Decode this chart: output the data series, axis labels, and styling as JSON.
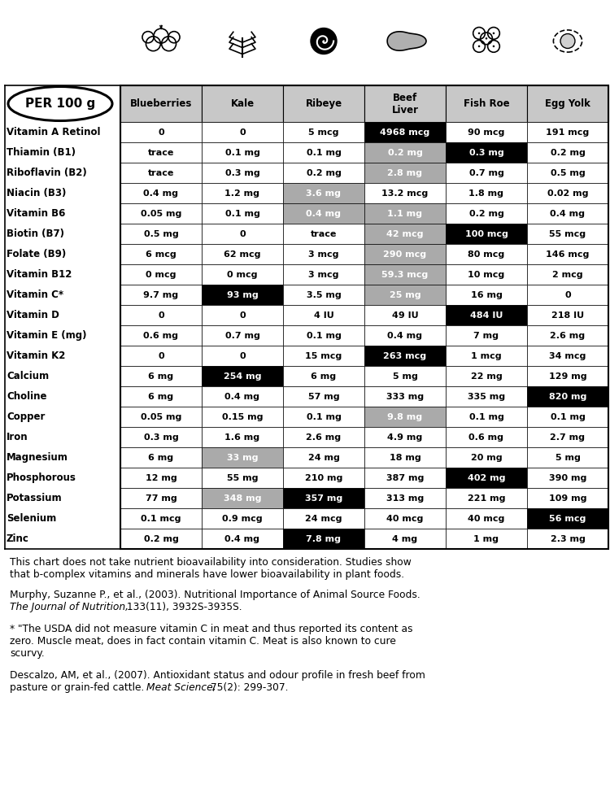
{
  "nutrients": [
    "Vitamin A Retinol",
    "Thiamin (B1)",
    "Riboflavin (B2)",
    "Niacin (B3)",
    "Vitamin B6",
    "Biotin (B7)",
    "Folate (B9)",
    "Vitamin B12",
    "Vitamin C*",
    "Vitamin D",
    "Vitamin E (mg)",
    "Vitamin K2",
    "Calcium",
    "Choline",
    "Copper",
    "Iron",
    "Magnesium",
    "Phosphorous",
    "Potassium",
    "Selenium",
    "Zinc"
  ],
  "columns": [
    "Blueberries",
    "Kale",
    "Ribeye",
    "Beef\nLiver",
    "Fish Roe",
    "Egg Yolk"
  ],
  "values": [
    [
      "0",
      "0",
      "5 mcg",
      "4968 mcg",
      "90 mcg",
      "191 mcg"
    ],
    [
      "trace",
      "0.1 mg",
      "0.1 mg",
      "0.2 mg",
      "0.3 mg",
      "0.2 mg"
    ],
    [
      "trace",
      "0.3 mg",
      "0.2 mg",
      "2.8 mg",
      "0.7 mg",
      "0.5 mg"
    ],
    [
      "0.4 mg",
      "1.2 mg",
      "3.6 mg",
      "13.2 mcg",
      "1.8 mg",
      "0.02 mg"
    ],
    [
      "0.05 mg",
      "0.1 mg",
      "0.4 mg",
      "1.1 mg",
      "0.2 mg",
      "0.4 mg"
    ],
    [
      "0.5 mg",
      "0",
      "trace",
      "42 mcg",
      "100 mcg",
      "55 mcg"
    ],
    [
      "6 mcg",
      "62 mcg",
      "3 mcg",
      "290 mcg",
      "80 mcg",
      "146 mcg"
    ],
    [
      "0 mcg",
      "0 mcg",
      "3 mcg",
      "59.3 mcg",
      "10 mcg",
      "2 mcg"
    ],
    [
      "9.7 mg",
      "93 mg",
      "3.5 mg",
      "25 mg",
      "16 mg",
      "0"
    ],
    [
      "0",
      "0",
      "4 IU",
      "49 IU",
      "484 IU",
      "218 IU"
    ],
    [
      "0.6 mg",
      "0.7 mg",
      "0.1 mg",
      "0.4 mg",
      "7 mg",
      "2.6 mg"
    ],
    [
      "0",
      "0",
      "15 mcg",
      "263 mcg",
      "1 mcg",
      "34 mcg"
    ],
    [
      "6 mg",
      "254 mg",
      "6 mg",
      "5 mg",
      "22 mg",
      "129 mg"
    ],
    [
      "6 mg",
      "0.4 mg",
      "57 mg",
      "333 mg",
      "335 mg",
      "820 mg"
    ],
    [
      "0.05 mg",
      "0.15 mg",
      "0.1 mg",
      "9.8 mg",
      "0.1 mg",
      "0.1 mg"
    ],
    [
      "0.3 mg",
      "1.6 mg",
      "2.6 mg",
      "4.9 mg",
      "0.6 mg",
      "2.7 mg"
    ],
    [
      "6 mg",
      "33 mg",
      "24 mg",
      "18 mg",
      "20 mg",
      "5 mg"
    ],
    [
      "12 mg",
      "55 mg",
      "210 mg",
      "387 mg",
      "402 mg",
      "390 mg"
    ],
    [
      "77 mg",
      "348 mg",
      "357 mg",
      "313 mg",
      "221 mg",
      "109 mg"
    ],
    [
      "0.1 mcg",
      "0.9 mcg",
      "24 mcg",
      "40 mcg",
      "40 mcg",
      "56 mcg"
    ],
    [
      "0.2 mg",
      "0.4 mg",
      "7.8 mg",
      "4 mg",
      "1 mg",
      "2.3 mg"
    ]
  ],
  "cell_colors": [
    [
      "#ffffff",
      "#ffffff",
      "#ffffff",
      "#000000",
      "#ffffff",
      "#ffffff"
    ],
    [
      "#ffffff",
      "#ffffff",
      "#ffffff",
      "#aaaaaa",
      "#000000",
      "#ffffff"
    ],
    [
      "#ffffff",
      "#ffffff",
      "#ffffff",
      "#aaaaaa",
      "#ffffff",
      "#ffffff"
    ],
    [
      "#ffffff",
      "#ffffff",
      "#aaaaaa",
      "#ffffff",
      "#ffffff",
      "#ffffff"
    ],
    [
      "#ffffff",
      "#ffffff",
      "#aaaaaa",
      "#aaaaaa",
      "#ffffff",
      "#ffffff"
    ],
    [
      "#ffffff",
      "#ffffff",
      "#ffffff",
      "#aaaaaa",
      "#000000",
      "#ffffff"
    ],
    [
      "#ffffff",
      "#ffffff",
      "#ffffff",
      "#aaaaaa",
      "#ffffff",
      "#ffffff"
    ],
    [
      "#ffffff",
      "#ffffff",
      "#ffffff",
      "#aaaaaa",
      "#ffffff",
      "#ffffff"
    ],
    [
      "#ffffff",
      "#000000",
      "#ffffff",
      "#aaaaaa",
      "#ffffff",
      "#ffffff"
    ],
    [
      "#ffffff",
      "#ffffff",
      "#ffffff",
      "#ffffff",
      "#000000",
      "#ffffff"
    ],
    [
      "#ffffff",
      "#ffffff",
      "#ffffff",
      "#ffffff",
      "#ffffff",
      "#ffffff"
    ],
    [
      "#ffffff",
      "#ffffff",
      "#ffffff",
      "#000000",
      "#ffffff",
      "#ffffff"
    ],
    [
      "#ffffff",
      "#000000",
      "#ffffff",
      "#ffffff",
      "#ffffff",
      "#ffffff"
    ],
    [
      "#ffffff",
      "#ffffff",
      "#ffffff",
      "#ffffff",
      "#ffffff",
      "#000000"
    ],
    [
      "#ffffff",
      "#ffffff",
      "#ffffff",
      "#aaaaaa",
      "#ffffff",
      "#ffffff"
    ],
    [
      "#ffffff",
      "#ffffff",
      "#ffffff",
      "#ffffff",
      "#ffffff",
      "#ffffff"
    ],
    [
      "#ffffff",
      "#aaaaaa",
      "#ffffff",
      "#ffffff",
      "#ffffff",
      "#ffffff"
    ],
    [
      "#ffffff",
      "#ffffff",
      "#ffffff",
      "#ffffff",
      "#000000",
      "#ffffff"
    ],
    [
      "#ffffff",
      "#aaaaaa",
      "#000000",
      "#ffffff",
      "#ffffff",
      "#ffffff"
    ],
    [
      "#ffffff",
      "#ffffff",
      "#ffffff",
      "#ffffff",
      "#ffffff",
      "#000000"
    ],
    [
      "#ffffff",
      "#ffffff",
      "#000000",
      "#ffffff",
      "#ffffff",
      "#ffffff"
    ]
  ],
  "text_colors": [
    [
      "#000000",
      "#000000",
      "#000000",
      "#ffffff",
      "#000000",
      "#000000"
    ],
    [
      "#000000",
      "#000000",
      "#000000",
      "#ffffff",
      "#ffffff",
      "#000000"
    ],
    [
      "#000000",
      "#000000",
      "#000000",
      "#ffffff",
      "#000000",
      "#000000"
    ],
    [
      "#000000",
      "#000000",
      "#ffffff",
      "#000000",
      "#000000",
      "#000000"
    ],
    [
      "#000000",
      "#000000",
      "#ffffff",
      "#ffffff",
      "#000000",
      "#000000"
    ],
    [
      "#000000",
      "#000000",
      "#000000",
      "#ffffff",
      "#ffffff",
      "#000000"
    ],
    [
      "#000000",
      "#000000",
      "#000000",
      "#ffffff",
      "#000000",
      "#000000"
    ],
    [
      "#000000",
      "#000000",
      "#000000",
      "#ffffff",
      "#000000",
      "#000000"
    ],
    [
      "#000000",
      "#ffffff",
      "#000000",
      "#ffffff",
      "#000000",
      "#000000"
    ],
    [
      "#000000",
      "#000000",
      "#000000",
      "#000000",
      "#ffffff",
      "#000000"
    ],
    [
      "#000000",
      "#000000",
      "#000000",
      "#000000",
      "#000000",
      "#000000"
    ],
    [
      "#000000",
      "#000000",
      "#000000",
      "#ffffff",
      "#000000",
      "#000000"
    ],
    [
      "#000000",
      "#ffffff",
      "#000000",
      "#000000",
      "#000000",
      "#000000"
    ],
    [
      "#000000",
      "#000000",
      "#000000",
      "#000000",
      "#000000",
      "#ffffff"
    ],
    [
      "#000000",
      "#000000",
      "#000000",
      "#ffffff",
      "#000000",
      "#000000"
    ],
    [
      "#000000",
      "#000000",
      "#000000",
      "#000000",
      "#000000",
      "#000000"
    ],
    [
      "#000000",
      "#ffffff",
      "#000000",
      "#000000",
      "#000000",
      "#000000"
    ],
    [
      "#000000",
      "#000000",
      "#000000",
      "#000000",
      "#ffffff",
      "#000000"
    ],
    [
      "#000000",
      "#ffffff",
      "#ffffff",
      "#000000",
      "#000000",
      "#000000"
    ],
    [
      "#000000",
      "#000000",
      "#000000",
      "#000000",
      "#000000",
      "#ffffff"
    ],
    [
      "#000000",
      "#000000",
      "#ffffff",
      "#000000",
      "#000000",
      "#000000"
    ]
  ]
}
